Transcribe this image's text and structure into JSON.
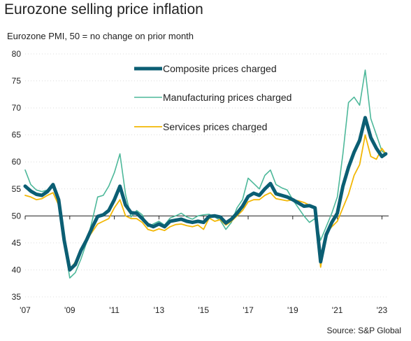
{
  "title": "Eurozone selling price inflation",
  "subtitle": "Eurozone PMI, 50 = no change on prior month",
  "source": "Source: S&P Global",
  "chart_data": {
    "type": "line",
    "ylim": [
      35,
      80
    ],
    "xlim": [
      2007.0,
      2023.3
    ],
    "baseline": 50,
    "y_ticks": [
      35,
      40,
      45,
      50,
      55,
      60,
      65,
      70,
      75,
      80
    ],
    "x_ticks": [
      {
        "label": "'07",
        "value": 2007
      },
      {
        "label": "'09",
        "value": 2009
      },
      {
        "label": "'11",
        "value": 2011
      },
      {
        "label": "'13",
        "value": 2013
      },
      {
        "label": "'15",
        "value": 2015
      },
      {
        "label": "'17",
        "value": 2017
      },
      {
        "label": "'19",
        "value": 2019
      },
      {
        "label": "'21",
        "value": 2021
      },
      {
        "label": "'23",
        "value": 2023
      }
    ],
    "legend_position": "top-center",
    "series": [
      {
        "name": "Composite prices charged",
        "color": "#0b5e73",
        "width": 5,
        "x": [
          2007.0,
          2007.25,
          2007.5,
          2007.75,
          2008.0,
          2008.25,
          2008.5,
          2008.75,
          2009.0,
          2009.25,
          2009.5,
          2009.75,
          2010.0,
          2010.25,
          2010.5,
          2010.75,
          2011.0,
          2011.25,
          2011.5,
          2011.75,
          2012.0,
          2012.25,
          2012.5,
          2012.75,
          2013.0,
          2013.25,
          2013.5,
          2013.75,
          2014.0,
          2014.25,
          2014.5,
          2014.75,
          2015.0,
          2015.25,
          2015.5,
          2015.75,
          2016.0,
          2016.25,
          2016.5,
          2016.75,
          2017.0,
          2017.25,
          2017.5,
          2017.75,
          2018.0,
          2018.25,
          2018.5,
          2018.75,
          2019.0,
          2019.25,
          2019.5,
          2019.75,
          2020.0,
          2020.25,
          2020.5,
          2020.75,
          2021.0,
          2021.25,
          2021.5,
          2021.75,
          2022.0,
          2022.25,
          2022.5,
          2022.75,
          2023.0,
          2023.17
        ],
        "values": [
          55.5,
          54.6,
          54.0,
          53.8,
          54.5,
          55.8,
          53.0,
          45.5,
          40.0,
          41.0,
          43.6,
          45.5,
          47.8,
          49.9,
          50.2,
          51.0,
          53.0,
          55.5,
          52.0,
          50.6,
          50.5,
          49.5,
          48.4,
          48.0,
          48.5,
          48.0,
          49.0,
          49.2,
          49.4,
          49.0,
          48.8,
          49.0,
          48.8,
          49.9,
          50.0,
          49.8,
          48.7,
          49.4,
          50.5,
          51.8,
          53.6,
          54.2,
          53.8,
          55.0,
          56.0,
          54.1,
          53.8,
          53.5,
          53.0,
          52.4,
          51.8,
          51.9,
          51.5,
          41.5,
          46.5,
          48.8,
          50.5,
          55.5,
          59.0,
          61.8,
          64.0,
          68.2,
          64.5,
          62.5,
          61.0,
          61.5
        ]
      },
      {
        "name": "Manufacturing prices charged",
        "color": "#4db89a",
        "width": 1.6,
        "x": [
          2007.0,
          2007.25,
          2007.5,
          2007.75,
          2008.0,
          2008.25,
          2008.5,
          2008.75,
          2009.0,
          2009.25,
          2009.5,
          2009.75,
          2010.0,
          2010.25,
          2010.5,
          2010.75,
          2011.0,
          2011.25,
          2011.5,
          2011.75,
          2012.0,
          2012.25,
          2012.5,
          2012.75,
          2013.0,
          2013.25,
          2013.5,
          2013.75,
          2014.0,
          2014.25,
          2014.5,
          2014.75,
          2015.0,
          2015.25,
          2015.5,
          2015.75,
          2016.0,
          2016.25,
          2016.5,
          2016.75,
          2017.0,
          2017.25,
          2017.5,
          2017.75,
          2018.0,
          2018.25,
          2018.5,
          2018.75,
          2019.0,
          2019.25,
          2019.5,
          2019.75,
          2020.0,
          2020.25,
          2020.5,
          2020.75,
          2021.0,
          2021.25,
          2021.5,
          2021.75,
          2022.0,
          2022.25,
          2022.5,
          2022.75,
          2023.0,
          2023.17
        ],
        "values": [
          58.5,
          55.8,
          54.8,
          54.5,
          54.8,
          56.0,
          53.5,
          45.0,
          38.5,
          39.5,
          42.0,
          45.0,
          49.0,
          53.5,
          53.8,
          55.5,
          58.0,
          61.5,
          54.0,
          49.8,
          51.0,
          50.2,
          48.0,
          48.5,
          49.0,
          48.3,
          49.6,
          50.0,
          50.5,
          49.8,
          49.4,
          50.0,
          50.2,
          50.3,
          49.8,
          49.2,
          47.5,
          48.8,
          51.5,
          53.0,
          57.0,
          56.0,
          55.0,
          57.5,
          58.5,
          55.8,
          55.2,
          54.8,
          53.0,
          51.5,
          50.0,
          48.8,
          49.5,
          45.5,
          48.0,
          50.5,
          53.5,
          61.5,
          71.0,
          72.0,
          70.5,
          77.0,
          68.0,
          65.0,
          62.0,
          61.5
        ]
      },
      {
        "name": "Services prices charged",
        "color": "#f2b705",
        "width": 1.8,
        "x": [
          2007.0,
          2007.25,
          2007.5,
          2007.75,
          2008.0,
          2008.25,
          2008.5,
          2008.75,
          2009.0,
          2009.25,
          2009.5,
          2009.75,
          2010.0,
          2010.25,
          2010.5,
          2010.75,
          2011.0,
          2011.25,
          2011.5,
          2011.75,
          2012.0,
          2012.25,
          2012.5,
          2012.75,
          2013.0,
          2013.25,
          2013.5,
          2013.75,
          2014.0,
          2014.25,
          2014.5,
          2014.75,
          2015.0,
          2015.25,
          2015.5,
          2015.75,
          2016.0,
          2016.25,
          2016.5,
          2016.75,
          2017.0,
          2017.25,
          2017.5,
          2017.75,
          2018.0,
          2018.25,
          2018.5,
          2018.75,
          2019.0,
          2019.25,
          2019.5,
          2019.75,
          2020.0,
          2020.25,
          2020.5,
          2020.75,
          2021.0,
          2021.25,
          2021.5,
          2021.75,
          2022.0,
          2022.25,
          2022.5,
          2022.75,
          2023.0,
          2023.17
        ],
        "values": [
          53.8,
          53.5,
          53.0,
          53.2,
          53.8,
          54.3,
          52.0,
          45.0,
          40.0,
          41.5,
          44.0,
          45.5,
          47.0,
          48.5,
          49.0,
          49.5,
          51.5,
          53.0,
          50.0,
          49.5,
          49.5,
          48.8,
          47.5,
          47.2,
          47.6,
          47.3,
          48.0,
          48.4,
          48.5,
          48.2,
          48.0,
          48.3,
          47.5,
          49.6,
          49.0,
          49.3,
          48.3,
          49.0,
          50.0,
          51.0,
          52.6,
          53.0,
          53.0,
          53.8,
          54.3,
          53.2,
          53.0,
          52.8,
          53.0,
          52.8,
          52.5,
          52.0,
          51.5,
          40.5,
          46.8,
          48.0,
          49.0,
          51.5,
          54.0,
          57.5,
          59.5,
          65.0,
          61.0,
          60.5,
          62.5,
          61.5
        ]
      }
    ]
  }
}
